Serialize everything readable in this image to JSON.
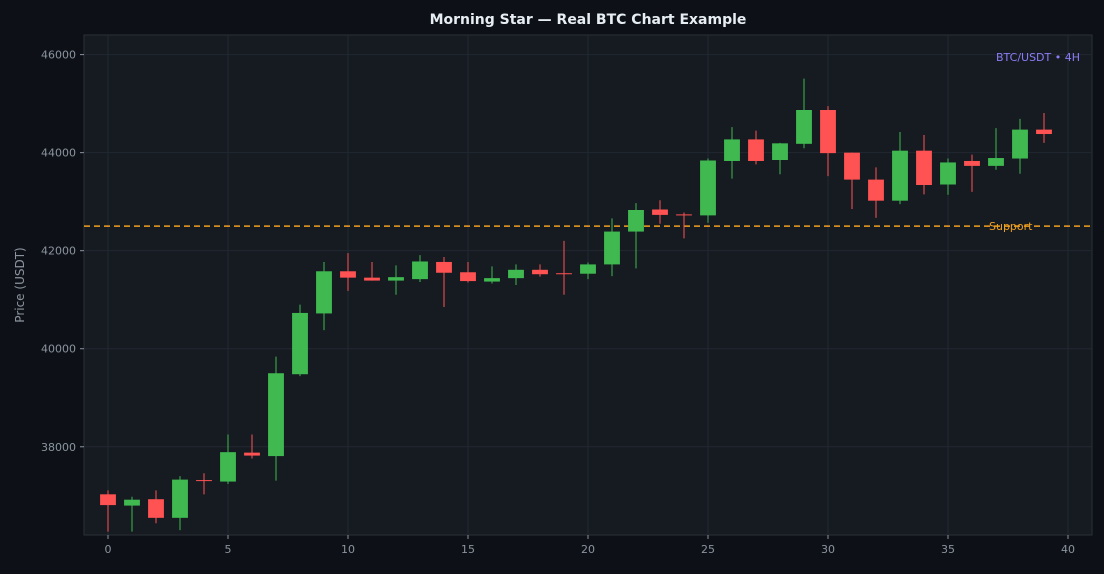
{
  "chart_data": {
    "type": "candlestick",
    "title": "Morning Star — Real BTC Chart Example",
    "xlabel": "",
    "ylabel": "Price (USDT)",
    "xlim": [
      -1,
      41
    ],
    "ylim": [
      36200,
      46400
    ],
    "xticks": [
      0,
      5,
      10,
      15,
      20,
      25,
      30,
      35,
      40
    ],
    "xtick_labels": [
      "0",
      "5",
      "10",
      "15",
      "20",
      "25",
      "30",
      "35",
      "40"
    ],
    "yticks": [
      38000,
      40000,
      42000,
      44000,
      46000
    ],
    "ytick_labels": [
      "38000",
      "40000",
      "42000",
      "44000",
      "46000"
    ],
    "grid": true,
    "annotation": "BTC/USDT • 4H",
    "support": {
      "value": 42500,
      "label": "Support",
      "color": "#f0a020"
    },
    "colors": {
      "up": "#3fb950",
      "down": "#ff5252",
      "background": "#161b22",
      "page": "#0d1117",
      "title": "#e6edf3",
      "ticks": "#8b949e",
      "annotation": "#8b7cf6"
    },
    "candles": [
      {
        "x": 0,
        "open": 37030,
        "high": 37110,
        "low": 36270,
        "close": 36810
      },
      {
        "x": 1,
        "open": 36800,
        "high": 36980,
        "low": 36270,
        "close": 36920
      },
      {
        "x": 2,
        "open": 36930,
        "high": 37110,
        "low": 36440,
        "close": 36550
      },
      {
        "x": 3,
        "open": 36550,
        "high": 37400,
        "low": 36300,
        "close": 37330
      },
      {
        "x": 4,
        "open": 37320,
        "high": 37460,
        "low": 37030,
        "close": 37300
      },
      {
        "x": 5,
        "open": 37290,
        "high": 38250,
        "low": 37240,
        "close": 37890
      },
      {
        "x": 6,
        "open": 37880,
        "high": 38250,
        "low": 37760,
        "close": 37820
      },
      {
        "x": 7,
        "open": 37810,
        "high": 39840,
        "low": 37310,
        "close": 39500
      },
      {
        "x": 8,
        "open": 39480,
        "high": 40900,
        "low": 39440,
        "close": 40730
      },
      {
        "x": 9,
        "open": 40720,
        "high": 41770,
        "low": 40380,
        "close": 41580
      },
      {
        "x": 10,
        "open": 41580,
        "high": 41950,
        "low": 41180,
        "close": 41450
      },
      {
        "x": 11,
        "open": 41450,
        "high": 41770,
        "low": 41390,
        "close": 41390
      },
      {
        "x": 12,
        "open": 41390,
        "high": 41700,
        "low": 41100,
        "close": 41460
      },
      {
        "x": 13,
        "open": 41420,
        "high": 41910,
        "low": 41360,
        "close": 41780
      },
      {
        "x": 14,
        "open": 41770,
        "high": 41870,
        "low": 40850,
        "close": 41550
      },
      {
        "x": 15,
        "open": 41560,
        "high": 41770,
        "low": 41350,
        "close": 41380
      },
      {
        "x": 16,
        "open": 41370,
        "high": 41680,
        "low": 41330,
        "close": 41440
      },
      {
        "x": 17,
        "open": 41440,
        "high": 41720,
        "low": 41300,
        "close": 41610
      },
      {
        "x": 18,
        "open": 41610,
        "high": 41720,
        "low": 41470,
        "close": 41520
      },
      {
        "x": 19,
        "open": 41540,
        "high": 42200,
        "low": 41100,
        "close": 41530
      },
      {
        "x": 20,
        "open": 41530,
        "high": 41760,
        "low": 41420,
        "close": 41720
      },
      {
        "x": 21,
        "open": 41720,
        "high": 42660,
        "low": 41480,
        "close": 42390
      },
      {
        "x": 22,
        "open": 42390,
        "high": 42970,
        "low": 41640,
        "close": 42830
      },
      {
        "x": 23,
        "open": 42840,
        "high": 43030,
        "low": 42550,
        "close": 42730
      },
      {
        "x": 24,
        "open": 42740,
        "high": 42780,
        "low": 42250,
        "close": 42720
      },
      {
        "x": 25,
        "open": 42720,
        "high": 43880,
        "low": 42570,
        "close": 43840
      },
      {
        "x": 26,
        "open": 43830,
        "high": 44520,
        "low": 43470,
        "close": 44270
      },
      {
        "x": 27,
        "open": 44270,
        "high": 44450,
        "low": 43760,
        "close": 43830
      },
      {
        "x": 28,
        "open": 43850,
        "high": 44200,
        "low": 43560,
        "close": 44190
      },
      {
        "x": 29,
        "open": 44180,
        "high": 45510,
        "low": 44090,
        "close": 44870
      },
      {
        "x": 30,
        "open": 44870,
        "high": 44950,
        "low": 43520,
        "close": 43990
      },
      {
        "x": 31,
        "open": 44000,
        "high": 44000,
        "low": 42850,
        "close": 43450
      },
      {
        "x": 32,
        "open": 43450,
        "high": 43700,
        "low": 42670,
        "close": 43020
      },
      {
        "x": 33,
        "open": 43020,
        "high": 44420,
        "low": 42950,
        "close": 44040
      },
      {
        "x": 34,
        "open": 44040,
        "high": 44360,
        "low": 43150,
        "close": 43340
      },
      {
        "x": 35,
        "open": 43350,
        "high": 43880,
        "low": 43140,
        "close": 43800
      },
      {
        "x": 36,
        "open": 43830,
        "high": 43960,
        "low": 43200,
        "close": 43730
      },
      {
        "x": 37,
        "open": 43730,
        "high": 44500,
        "low": 43650,
        "close": 43890
      },
      {
        "x": 38,
        "open": 43880,
        "high": 44690,
        "low": 43570,
        "close": 44470
      },
      {
        "x": 39,
        "open": 44470,
        "high": 44810,
        "low": 44200,
        "close": 44380
      }
    ]
  }
}
